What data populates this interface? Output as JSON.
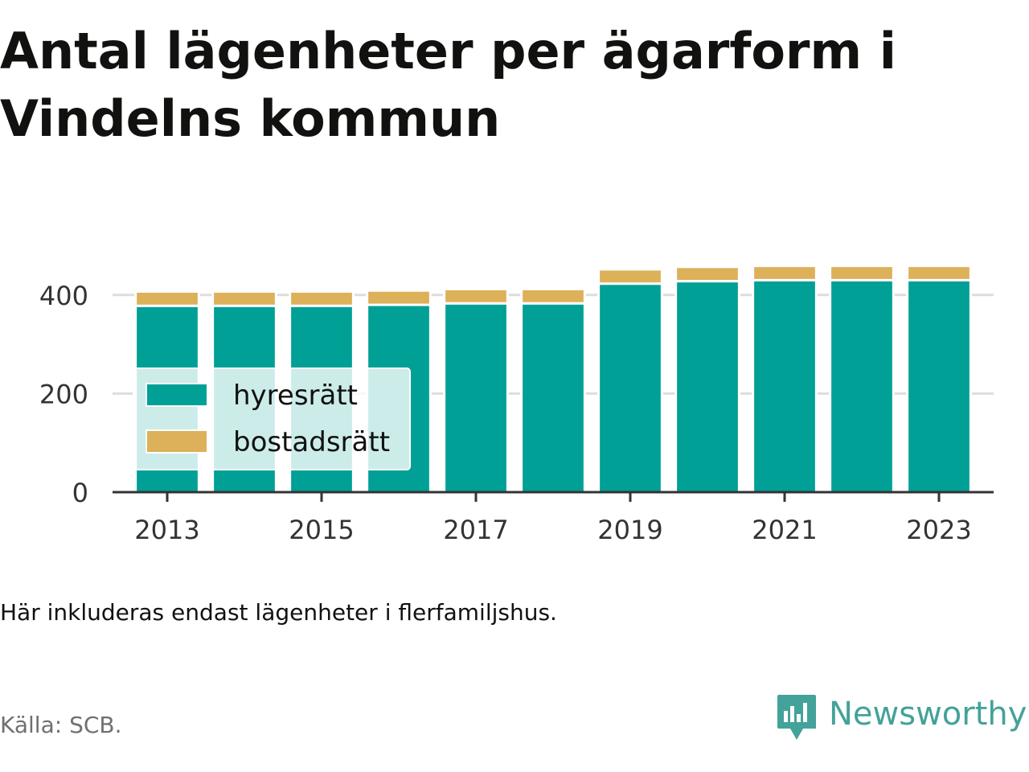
{
  "title": "Antal lägenheter per ägarform i Vindelns kommun",
  "note": "Här inkluderas endast lägenheter i flerfamiljshus.",
  "source": "Källa: SCB.",
  "brand": {
    "name": "Newsworthy",
    "color": "#43a29a",
    "icon": "newsworthy-logo-icon"
  },
  "colors": {
    "hyresratt": "#00a096",
    "bostadsratt": "#ddb05a",
    "grid": "#dddddd",
    "axis": "#333333"
  },
  "chart_data": {
    "type": "bar",
    "stacked": true,
    "categories": [
      2013,
      2014,
      2015,
      2016,
      2017,
      2018,
      2019,
      2020,
      2021,
      2022,
      2023
    ],
    "x_tick_labels": [
      "2013",
      "2015",
      "2017",
      "2019",
      "2021",
      "2023"
    ],
    "series": [
      {
        "name": "hyresrätt",
        "color": "#00a096",
        "values": [
          378,
          378,
          378,
          380,
          383,
          383,
          423,
          428,
          430,
          430,
          430
        ]
      },
      {
        "name": "bostadsrätt",
        "color": "#ddb05a",
        "values": [
          29,
          29,
          29,
          29,
          29,
          29,
          29,
          29,
          29,
          29,
          29
        ]
      }
    ],
    "y_ticks": [
      0,
      200,
      400
    ],
    "ylim": [
      0,
      460
    ],
    "grid": true,
    "legend_position": "bottom-left"
  }
}
